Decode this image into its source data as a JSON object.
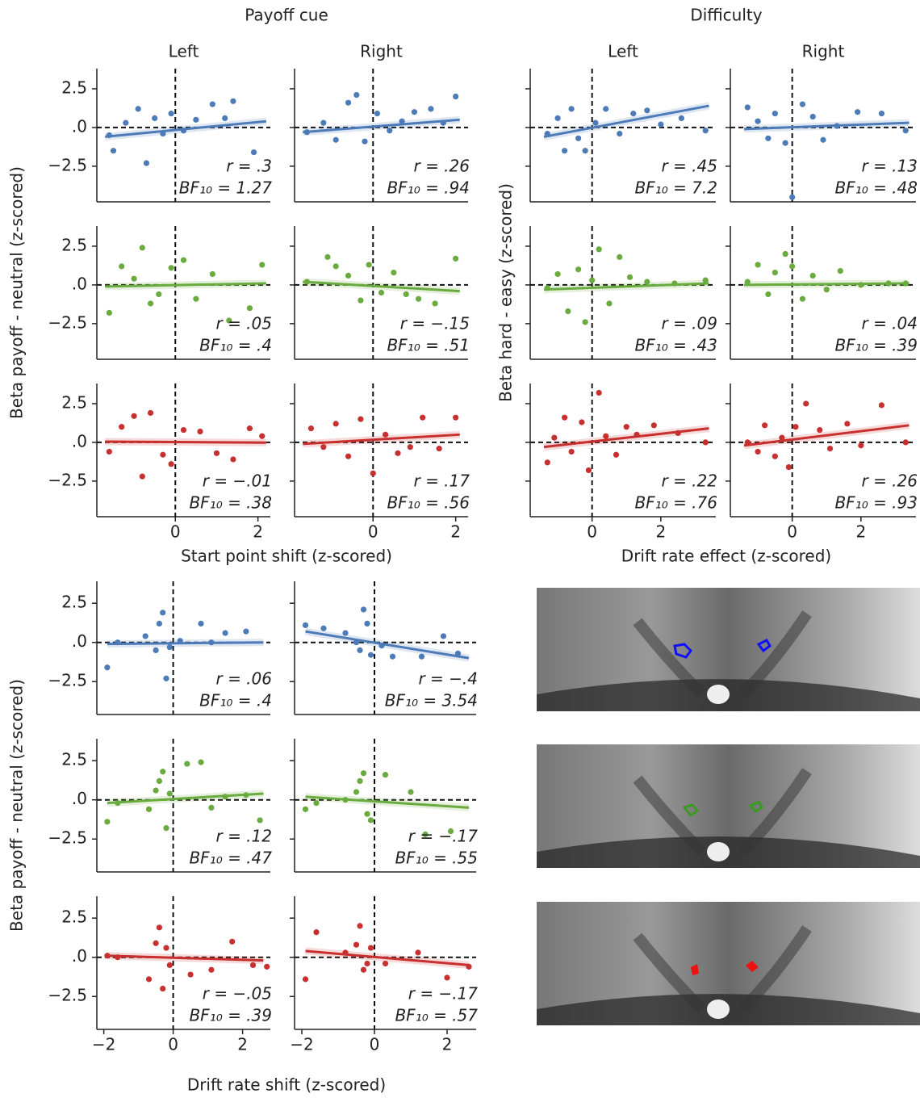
{
  "chart_data": [
    {
      "type": "scatter",
      "title": "Payoff cue",
      "columns": [
        "Left",
        "Right"
      ],
      "ylabel": "Beta payoff - neutral (z-scored)",
      "xlabel": "Start point shift (z-scored)",
      "xlim": [
        -1.9,
        2.3
      ],
      "ylim": [
        -4.8,
        3.8
      ],
      "xticks": [
        0,
        2
      ],
      "yticks": [
        {
          "value": -2.5,
          "label": "−2.5"
        },
        {
          "value": 0,
          "label": ".0"
        },
        2.5
      ],
      "ytick_labels": true,
      "panels": [
        {
          "color": "#4c7bb8",
          "x": [
            -1.6,
            -1.5,
            -1.2,
            -0.9,
            -0.7,
            -0.5,
            -0.3,
            -0.1,
            0.2,
            0.5,
            0.9,
            1.2,
            1.4,
            1.9
          ],
          "y": [
            -0.5,
            -1.5,
            0.3,
            1.2,
            -2.3,
            0.6,
            -0.4,
            0.9,
            -0.2,
            0.5,
            1.5,
            0.6,
            1.7,
            -1.6
          ],
          "fit_x": [
            -1.7,
            2.2
          ],
          "fit_y": [
            -0.6,
            0.4
          ],
          "r_label": "r = .3",
          "bf_label": "BF₁₀ = 1.27"
        },
        {
          "color": "#4c7bb8",
          "x": [
            -1.6,
            -1.2,
            -0.9,
            -0.6,
            -0.4,
            -0.2,
            0.1,
            0.4,
            0.7,
            1.0,
            1.4,
            1.7,
            2.0
          ],
          "y": [
            -0.3,
            0.3,
            -0.8,
            1.6,
            2.1,
            -0.9,
            0.9,
            -0.2,
            0.4,
            1.0,
            1.2,
            0.3,
            2.0
          ],
          "fit_x": [
            -1.7,
            2.1
          ],
          "fit_y": [
            -0.3,
            0.5
          ],
          "r_label": "r = .26",
          "bf_label": "BF₁₀ = .94"
        },
        {
          "color": "#6aab3f",
          "x": [
            -1.6,
            -1.3,
            -1.0,
            -0.8,
            -0.6,
            -0.4,
            -0.1,
            0.2,
            0.5,
            0.9,
            1.3,
            1.8,
            2.1
          ],
          "y": [
            -1.8,
            1.2,
            0.4,
            2.4,
            -1.2,
            -0.6,
            1.1,
            1.6,
            -0.9,
            0.7,
            -2.3,
            -1.5,
            1.3
          ],
          "fit_x": [
            -1.7,
            2.2
          ],
          "fit_y": [
            -0.1,
            0.1
          ],
          "r_label": "r = .05",
          "bf_label": "BF₁₀ = .4"
        },
        {
          "color": "#6aab3f",
          "x": [
            -1.6,
            -1.1,
            -0.9,
            -0.6,
            -0.3,
            -0.1,
            0.2,
            0.5,
            0.8,
            1.1,
            1.5,
            2.0
          ],
          "y": [
            0.2,
            1.8,
            1.2,
            0.6,
            -1.0,
            1.3,
            -0.5,
            0.8,
            -0.6,
            -0.9,
            -1.2,
            1.7
          ],
          "fit_x": [
            -1.7,
            2.1
          ],
          "fit_y": [
            0.2,
            -0.4
          ],
          "r_label": "r = −.15",
          "bf_label": "BF₁₀ = .51"
        },
        {
          "color": "#c8302f",
          "x": [
            -1.6,
            -1.3,
            -1.0,
            -0.8,
            -0.6,
            -0.3,
            -0.1,
            0.2,
            0.6,
            1.0,
            1.4,
            1.8,
            2.1
          ],
          "y": [
            -0.6,
            1.0,
            1.7,
            -2.2,
            1.9,
            -0.8,
            -1.4,
            0.8,
            0.7,
            -0.7,
            -1.1,
            0.9,
            0.4
          ],
          "fit_x": [
            -1.7,
            2.2
          ],
          "fit_y": [
            0.05,
            -0.02
          ],
          "r_label": "r = −.01",
          "bf_label": "BF₁₀ = .38"
        },
        {
          "color": "#c8302f",
          "x": [
            -1.5,
            -1.2,
            -0.9,
            -0.6,
            -0.3,
            0.0,
            0.3,
            0.6,
            0.9,
            1.2,
            1.6,
            2.0
          ],
          "y": [
            0.9,
            -0.3,
            1.2,
            -0.9,
            1.5,
            -2.0,
            0.5,
            -0.7,
            -0.3,
            1.6,
            -0.4,
            1.6
          ],
          "fit_x": [
            -1.7,
            2.1
          ],
          "fit_y": [
            -0.1,
            0.5
          ],
          "r_label": "r = .17",
          "bf_label": "BF₁₀ = .56"
        }
      ]
    },
    {
      "type": "scatter",
      "title": "Difficulty",
      "columns": [
        "Left",
        "Right"
      ],
      "ylabel": "Beta hard - easy (z-scored)",
      "xlabel": "Drift rate effect (z-scored)",
      "xlim": [
        -1.8,
        3.6
      ],
      "ylim": [
        -4.8,
        3.8
      ],
      "xticks": [
        0,
        2
      ],
      "yticks": [
        -2.5,
        0,
        2.5
      ],
      "ytick_labels": false,
      "panels": [
        {
          "color": "#4c7bb8",
          "x": [
            -1.3,
            -1.0,
            -0.8,
            -0.6,
            -0.4,
            -0.2,
            0.1,
            0.4,
            0.8,
            1.2,
            1.6,
            2.0,
            2.6,
            3.3
          ],
          "y": [
            -0.4,
            0.6,
            -1.5,
            1.2,
            -0.7,
            -1.5,
            0.3,
            1.2,
            -0.4,
            0.9,
            1.1,
            0.2,
            0.6,
            -0.2
          ],
          "fit_x": [
            -1.4,
            3.4
          ],
          "fit_y": [
            -0.6,
            1.4
          ],
          "r_label": "r = .45",
          "bf_label": "BF₁₀ = 7.2"
        },
        {
          "color": "#4c7bb8",
          "x": [
            -1.3,
            -1.0,
            -0.7,
            -0.5,
            -0.2,
            0.0,
            0.3,
            0.6,
            0.9,
            1.3,
            1.9,
            2.6,
            3.3
          ],
          "y": [
            1.3,
            0.4,
            -0.7,
            0.9,
            -1.0,
            -4.5,
            1.5,
            0.7,
            -0.8,
            0.1,
            1.0,
            0.9,
            -0.2
          ],
          "fit_x": [
            -1.4,
            3.4
          ],
          "fit_y": [
            -0.1,
            0.3
          ],
          "r_label": "r = .13",
          "bf_label": "BF₁₀ = .48"
        },
        {
          "color": "#6aab3f",
          "x": [
            -1.3,
            -1.0,
            -0.7,
            -0.4,
            -0.2,
            0.0,
            0.2,
            0.5,
            0.8,
            1.1,
            1.6,
            2.4,
            3.3
          ],
          "y": [
            -0.2,
            0.7,
            -1.7,
            1.0,
            -2.4,
            0.3,
            2.3,
            -1.2,
            1.8,
            0.5,
            0.2,
            0.1,
            0.3
          ],
          "fit_x": [
            -1.4,
            3.4
          ],
          "fit_y": [
            -0.3,
            0.1
          ],
          "r_label": "r = .09",
          "bf_label": "BF₁₀ = .43"
        },
        {
          "color": "#6aab3f",
          "x": [
            -1.3,
            -1.0,
            -0.7,
            -0.5,
            -0.2,
            0.0,
            0.3,
            0.6,
            1.0,
            1.4,
            2.0,
            2.8,
            3.3
          ],
          "y": [
            0.2,
            1.3,
            -0.6,
            0.8,
            2.0,
            1.2,
            -0.9,
            0.6,
            -0.3,
            0.9,
            0.0,
            0.1,
            0.1
          ],
          "fit_x": [
            -1.4,
            3.4
          ],
          "fit_y": [
            0.0,
            0.1
          ],
          "r_label": "r = .04",
          "bf_label": "BF₁₀ = .39"
        },
        {
          "color": "#c8302f",
          "x": [
            -1.3,
            -1.1,
            -0.8,
            -0.6,
            -0.3,
            -0.1,
            0.2,
            0.4,
            0.7,
            1.0,
            1.3,
            1.8,
            2.5,
            3.3
          ],
          "y": [
            -1.3,
            0.3,
            1.6,
            -0.6,
            1.3,
            -1.8,
            3.2,
            0.4,
            -0.8,
            1.0,
            0.5,
            1.1,
            0.6,
            0.0
          ],
          "fit_x": [
            -1.4,
            3.4
          ],
          "fit_y": [
            -0.3,
            0.9
          ],
          "r_label": "r = .22",
          "bf_label": "BF₁₀ = .76"
        },
        {
          "color": "#c8302f",
          "x": [
            -1.3,
            -1.0,
            -0.8,
            -0.5,
            -0.3,
            -0.1,
            0.1,
            0.4,
            0.8,
            1.1,
            1.6,
            2.0,
            2.6,
            3.3
          ],
          "y": [
            0.0,
            -0.6,
            1.1,
            -0.9,
            0.3,
            -1.6,
            1.0,
            2.5,
            0.8,
            -0.4,
            1.2,
            -0.2,
            2.4,
            0.0
          ],
          "fit_x": [
            -1.4,
            3.4
          ],
          "fit_y": [
            -0.2,
            1.1
          ],
          "r_label": "r = .26",
          "bf_label": "BF₁₀ = .93"
        }
      ]
    },
    {
      "type": "scatter",
      "ylabel": "Beta payoff - neutral (z-scored)",
      "xlabel": "Drift rate shift (z-scored)",
      "xlim": [
        -2.2,
        2.8
      ],
      "ylim": [
        -4.6,
        3.9
      ],
      "xticks": [
        {
          "value": -2,
          "label": "−2"
        },
        0,
        2
      ],
      "yticks": [
        {
          "value": -2.5,
          "label": "−2.5"
        },
        {
          "value": 0,
          "label": ".0"
        },
        2.5
      ],
      "ytick_labels": true,
      "panels": [
        {
          "color": "#4c7bb8",
          "x": [
            -1.9,
            -1.6,
            -0.8,
            -0.5,
            -0.4,
            -0.3,
            -0.2,
            -0.1,
            0.2,
            0.8,
            1.1,
            1.5,
            2.1
          ],
          "y": [
            -1.6,
            0.0,
            0.4,
            -0.5,
            1.2,
            1.9,
            -2.3,
            -0.3,
            0.1,
            1.2,
            0.0,
            0.6,
            0.7
          ],
          "fit_x": [
            -1.9,
            2.6
          ],
          "fit_y": [
            -0.1,
            0.0
          ],
          "r_label": "r = .06",
          "bf_label": "BF₁₀ = .4"
        },
        {
          "color": "#4c7bb8",
          "x": [
            -1.9,
            -1.4,
            -0.8,
            -0.5,
            -0.4,
            -0.3,
            -0.2,
            -0.1,
            0.2,
            0.5,
            1.3,
            1.9,
            2.3
          ],
          "y": [
            1.1,
            0.9,
            0.6,
            0.0,
            -0.5,
            2.1,
            1.2,
            -0.8,
            -0.2,
            -0.9,
            -0.9,
            0.4,
            -0.7
          ],
          "fit_x": [
            -1.9,
            2.6
          ],
          "fit_y": [
            0.7,
            -1.0
          ],
          "r_label": "r = −.4",
          "bf_label": "BF₁₀ = 3.54"
        },
        {
          "color": "#6aab3f",
          "x": [
            -1.9,
            -1.6,
            -0.7,
            -0.5,
            -0.4,
            -0.3,
            -0.2,
            -0.1,
            0.4,
            0.8,
            1.1,
            1.5,
            2.1,
            2.5
          ],
          "y": [
            -1.4,
            -0.2,
            -0.6,
            0.6,
            1.2,
            1.8,
            -1.8,
            0.4,
            2.3,
            2.4,
            -0.5,
            0.2,
            0.3,
            -1.3
          ],
          "fit_x": [
            -1.9,
            2.6
          ],
          "fit_y": [
            -0.2,
            0.4
          ],
          "r_label": "r = .12",
          "bf_label": "BF₁₀ = .47"
        },
        {
          "color": "#6aab3f",
          "x": [
            -1.9,
            -1.6,
            -0.8,
            -0.5,
            -0.4,
            -0.3,
            -0.2,
            -0.1,
            0.3,
            1.0,
            1.4,
            2.1
          ],
          "y": [
            -0.6,
            -0.2,
            0.0,
            0.5,
            1.2,
            1.7,
            -0.9,
            -1.3,
            1.6,
            0.5,
            -2.2,
            -2.0
          ],
          "fit_x": [
            -1.9,
            2.6
          ],
          "fit_y": [
            0.2,
            -0.5
          ],
          "r_label": "r = −.17",
          "bf_label": "BF₁₀ = .55"
        },
        {
          "color": "#c8302f",
          "x": [
            -1.9,
            -1.6,
            -0.7,
            -0.5,
            -0.4,
            -0.3,
            -0.2,
            -0.1,
            0.5,
            1.1,
            1.7,
            2.3,
            2.7
          ],
          "y": [
            0.1,
            0.0,
            -1.4,
            0.9,
            1.9,
            -2.0,
            0.6,
            -0.5,
            -1.1,
            -0.8,
            1.0,
            -0.5,
            -0.6
          ],
          "fit_x": [
            -1.9,
            2.6
          ],
          "fit_y": [
            0.1,
            -0.2
          ],
          "r_label": "r = −.05",
          "bf_label": "BF₁₀ = .39"
        },
        {
          "color": "#c8302f",
          "x": [
            -1.9,
            -1.6,
            -0.8,
            -0.5,
            -0.4,
            -0.3,
            -0.2,
            -0.1,
            0.3,
            1.2,
            2.0,
            2.6
          ],
          "y": [
            -1.4,
            1.6,
            0.3,
            0.8,
            2.0,
            -0.8,
            -0.4,
            0.6,
            -0.4,
            0.3,
            -1.3,
            -0.6
          ],
          "fit_x": [
            -1.9,
            2.6
          ],
          "fit_y": [
            0.4,
            -0.5
          ],
          "r_label": "r = −.17",
          "bf_label": "BF₁₀ = .57"
        }
      ]
    }
  ]
}
